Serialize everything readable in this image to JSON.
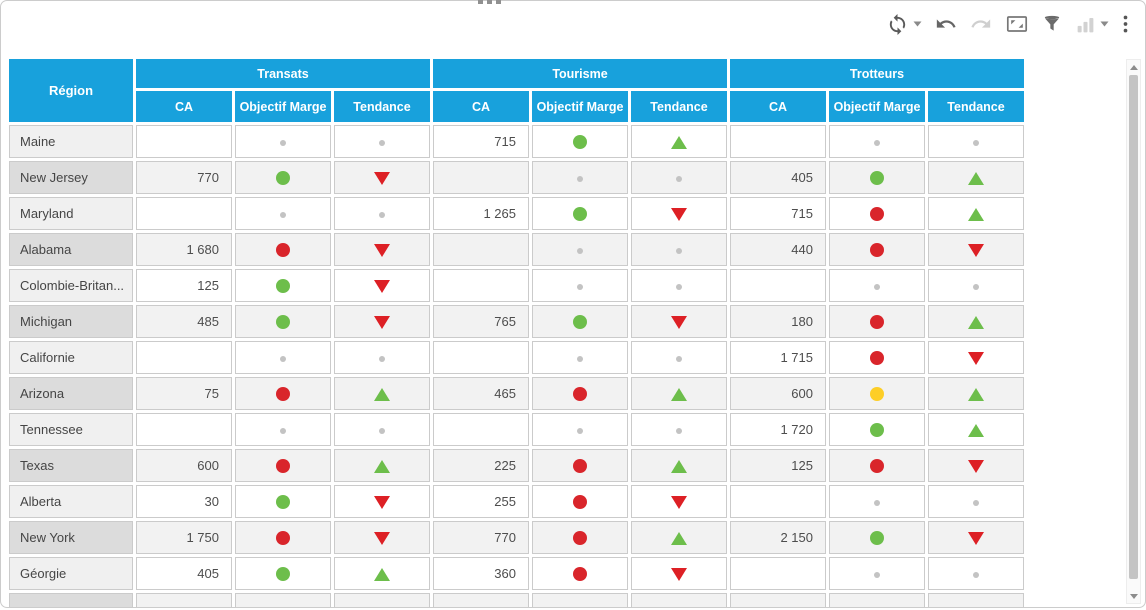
{
  "widget": {
    "drag_handle": "grip-dots",
    "toolbar": [
      {
        "id": "refresh",
        "icon": "sync-icon",
        "enabled": true,
        "caret": true
      },
      {
        "id": "undo",
        "icon": "undo-icon",
        "enabled": true,
        "caret": false
      },
      {
        "id": "redo",
        "icon": "redo-icon",
        "enabled": false,
        "caret": false
      },
      {
        "id": "fit",
        "icon": "fit-to-size-icon",
        "enabled": true,
        "caret": false
      },
      {
        "id": "filter",
        "icon": "filter-icon",
        "enabled": true,
        "caret": false
      },
      {
        "id": "chart",
        "icon": "bar-chart-icon",
        "enabled": false,
        "caret": true
      },
      {
        "id": "menu",
        "icon": "kebab-menu-icon",
        "enabled": true,
        "caret": false
      }
    ],
    "scrollbar": {
      "orientation": "vertical",
      "up_icon": "scroll-up-icon",
      "down_icon": "scroll-down-icon"
    }
  },
  "table": {
    "corner_header": "Région",
    "groups": [
      {
        "label": "Transats",
        "columns": [
          "CA",
          "Objectif Marge",
          "Tendance"
        ]
      },
      {
        "label": "Tourisme",
        "columns": [
          "CA",
          "Objectif Marge",
          "Tendance"
        ]
      },
      {
        "label": "Trotteurs",
        "columns": [
          "CA",
          "Objectif Marge",
          "Tendance"
        ]
      }
    ],
    "rows": [
      {
        "region": "Maine",
        "groups": [
          {
            "ca": "",
            "marge": "none",
            "tend": "none"
          },
          {
            "ca": "715",
            "marge": "green",
            "tend": "up"
          },
          {
            "ca": "",
            "marge": "none",
            "tend": "none"
          }
        ]
      },
      {
        "region": "New Jersey",
        "groups": [
          {
            "ca": "770",
            "marge": "green",
            "tend": "down"
          },
          {
            "ca": "",
            "marge": "none",
            "tend": "none"
          },
          {
            "ca": "405",
            "marge": "green",
            "tend": "up"
          }
        ]
      },
      {
        "region": "Maryland",
        "groups": [
          {
            "ca": "",
            "marge": "none",
            "tend": "none"
          },
          {
            "ca": "1 265",
            "marge": "green",
            "tend": "down"
          },
          {
            "ca": "715",
            "marge": "red",
            "tend": "up"
          }
        ]
      },
      {
        "region": "Alabama",
        "groups": [
          {
            "ca": "1 680",
            "marge": "red",
            "tend": "down"
          },
          {
            "ca": "",
            "marge": "none",
            "tend": "none"
          },
          {
            "ca": "440",
            "marge": "red",
            "tend": "down"
          }
        ]
      },
      {
        "region": "Colombie-Britan...",
        "groups": [
          {
            "ca": "125",
            "marge": "green",
            "tend": "down"
          },
          {
            "ca": "",
            "marge": "none",
            "tend": "none"
          },
          {
            "ca": "",
            "marge": "none",
            "tend": "none"
          }
        ]
      },
      {
        "region": "Michigan",
        "groups": [
          {
            "ca": "485",
            "marge": "green",
            "tend": "down"
          },
          {
            "ca": "765",
            "marge": "green",
            "tend": "down"
          },
          {
            "ca": "180",
            "marge": "red",
            "tend": "up"
          }
        ]
      },
      {
        "region": "Californie",
        "groups": [
          {
            "ca": "",
            "marge": "none",
            "tend": "none"
          },
          {
            "ca": "",
            "marge": "none",
            "tend": "none"
          },
          {
            "ca": "1 715",
            "marge": "red",
            "tend": "down"
          }
        ]
      },
      {
        "region": "Arizona",
        "groups": [
          {
            "ca": "75",
            "marge": "red",
            "tend": "up"
          },
          {
            "ca": "465",
            "marge": "red",
            "tend": "up"
          },
          {
            "ca": "600",
            "marge": "yellow",
            "tend": "up"
          }
        ]
      },
      {
        "region": "Tennessee",
        "groups": [
          {
            "ca": "",
            "marge": "none",
            "tend": "none"
          },
          {
            "ca": "",
            "marge": "none",
            "tend": "none"
          },
          {
            "ca": "1 720",
            "marge": "green",
            "tend": "up"
          }
        ]
      },
      {
        "region": "Texas",
        "groups": [
          {
            "ca": "600",
            "marge": "red",
            "tend": "up"
          },
          {
            "ca": "225",
            "marge": "red",
            "tend": "up"
          },
          {
            "ca": "125",
            "marge": "red",
            "tend": "down"
          }
        ]
      },
      {
        "region": "Alberta",
        "groups": [
          {
            "ca": "30",
            "marge": "green",
            "tend": "down"
          },
          {
            "ca": "255",
            "marge": "red",
            "tend": "down"
          },
          {
            "ca": "",
            "marge": "none",
            "tend": "none"
          }
        ]
      },
      {
        "region": "New York",
        "groups": [
          {
            "ca": "1 750",
            "marge": "red",
            "tend": "down"
          },
          {
            "ca": "770",
            "marge": "red",
            "tend": "up"
          },
          {
            "ca": "2 150",
            "marge": "green",
            "tend": "down"
          }
        ]
      },
      {
        "region": "Géorgie",
        "groups": [
          {
            "ca": "405",
            "marge": "green",
            "tend": "up"
          },
          {
            "ca": "360",
            "marge": "red",
            "tend": "down"
          },
          {
            "ca": "",
            "marge": "none",
            "tend": "none"
          }
        ]
      },
      {
        "region": "",
        "partial": true,
        "groups": [
          {
            "ca": "",
            "marge": "hidden",
            "tend": "hidden"
          },
          {
            "ca": "",
            "marge": "hidden",
            "tend": "hidden"
          },
          {
            "ca": "",
            "marge": "hidden",
            "tend": "hidden"
          }
        ]
      }
    ]
  },
  "colors": {
    "header_bg": "#18a1dc",
    "header_text": "#ffffff",
    "marge_green": "#6dbe4b",
    "marge_red": "#d9252b",
    "marge_yellow": "#fdce27",
    "neutral_dot": "#c3c3c3",
    "tend_up": "#6dbe4b",
    "tend_down": "#dd2025"
  }
}
